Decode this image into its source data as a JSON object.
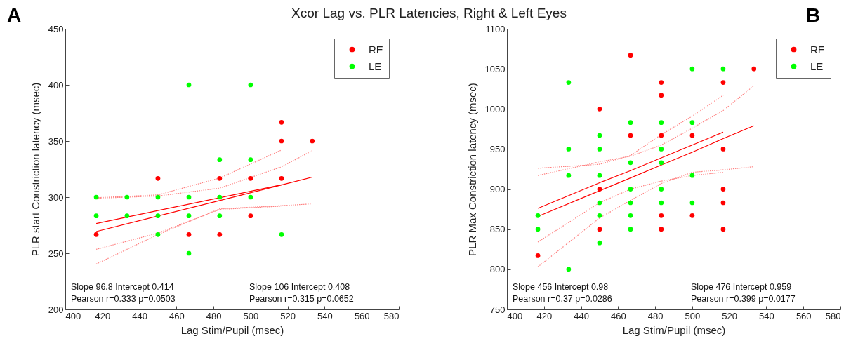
{
  "chart_data": [
    {
      "type": "scatter",
      "title": "Xcor Lag vs. PLR Latencies, Right & Left Eyes",
      "xlabel": "Lag Stim/Pupil (msec)",
      "ylabel": "PLR start Constriction latency (msec)",
      "xlim": [
        400,
        580
      ],
      "xticks": [
        400,
        420,
        440,
        460,
        480,
        500,
        520,
        540,
        560,
        580
      ],
      "ylim": [
        200,
        450
      ],
      "yticks": [
        200,
        250,
        300,
        350,
        400,
        450
      ],
      "legend": "top right",
      "marker": "circle",
      "annotations": [
        "A",
        "Slope 96.8 Intercept 0.414\nPearson r=0.333  p=0.0503",
        "Slope 106 Intercept 0.408\nPearson r=0.315  p=0.0652"
      ],
      "series": [
        {
          "type": "line",
          "marker": "none",
          "line_style": "solid",
          "color": "#ff0000",
          "x": [
            416.7,
            450,
            483.3,
            516.7
          ],
          "values": [
            276.5,
            288,
            299.5,
            311
          ]
        },
        {
          "type": "line",
          "marker": "none",
          "line_style": "dotted",
          "color": "#ff8080",
          "x": [
            416.7,
            450,
            483.3,
            516.7
          ],
          "values": [
            299.5,
            302,
            317,
            342
          ]
        },
        {
          "type": "line",
          "marker": "none",
          "line_style": "dotted",
          "color": "#ff8080",
          "x": [
            416.7,
            450,
            483.3,
            516.7
          ],
          "values": [
            253.5,
            268,
            289,
            292
          ]
        },
        {
          "type": "line",
          "marker": "none",
          "line_style": "solid",
          "color": "#ff0000",
          "x": [
            416.7,
            450,
            483.3,
            516.7,
            533.3
          ],
          "values": [
            269.4,
            283.2,
            297,
            310.9,
            317.8
          ]
        },
        {
          "type": "line",
          "marker": "none",
          "line_style": "dotted",
          "color": "#ff8080",
          "x": [
            416.7,
            450,
            483.3,
            516.7,
            533.3
          ],
          "values": [
            299,
            301,
            308,
            327,
            341.4
          ]
        },
        {
          "type": "line",
          "marker": "none",
          "line_style": "dotted",
          "color": "#ff8080",
          "x": [
            416.7,
            450,
            483.3,
            516.7,
            533.3
          ],
          "values": [
            240.4,
            266.7,
            289.6,
            292.4,
            294
          ]
        },
        {
          "name": "RE",
          "color": "#ff0000",
          "x": [
            416.7,
            450,
            466.7,
            483.3,
            483.3,
            500,
            500,
            516.7,
            516.7,
            516.7,
            533.3
          ],
          "values": [
            266.7,
            316.7,
            266.7,
            316.7,
            266.7,
            316.7,
            283.3,
            366.7,
            350,
            316.7,
            350
          ]
        },
        {
          "name": "LE",
          "color": "#00ff00",
          "x": [
            416.7,
            416.7,
            433.3,
            433.3,
            450,
            450,
            450,
            466.7,
            466.7,
            466.7,
            466.7,
            483.3,
            483.3,
            483.3,
            500,
            500,
            500,
            516.7
          ],
          "values": [
            300,
            283.3,
            300,
            283.3,
            300,
            283.3,
            266.7,
            400,
            300,
            283.3,
            250,
            333.3,
            300,
            283.3,
            400,
            333.3,
            300,
            266.7
          ]
        }
      ]
    },
    {
      "type": "scatter",
      "xlabel": "Lag Stim/Pupil (msec)",
      "ylabel": "PLR Max Constriction latency (msec)",
      "xlim": [
        400,
        580
      ],
      "xticks": [
        400,
        420,
        440,
        460,
        480,
        500,
        520,
        540,
        560,
        580
      ],
      "ylim": [
        750,
        1100
      ],
      "yticks": [
        750,
        800,
        850,
        900,
        950,
        1000,
        1050,
        1100
      ],
      "legend": "top right",
      "marker": "circle",
      "annotations": [
        "B",
        "Slope 456 Intercept 0.98\nPearson r=0.37  p=0.0286",
        "Slope 476 Intercept 0.959\nPearson r=0.399  p=0.0177"
      ],
      "series": [
        {
          "type": "line",
          "marker": "none",
          "line_style": "solid",
          "color": "#ff0000",
          "x": [
            416.7,
            450,
            466.7,
            483.3,
            500,
            516.7
          ],
          "values": [
            876,
            908,
            923,
            939,
            955,
            971
          ]
        },
        {
          "type": "line",
          "marker": "none",
          "line_style": "dotted",
          "color": "#ff8080",
          "x": [
            416.7,
            450,
            466.7,
            483.3,
            500,
            516.7
          ],
          "values": [
            926,
            931,
            942,
            968,
            991,
            1017
          ]
        },
        {
          "type": "line",
          "marker": "none",
          "line_style": "dotted",
          "color": "#ff8080",
          "x": [
            416.7,
            450,
            466.7,
            483.3,
            500,
            516.7
          ],
          "values": [
            834,
            883,
            900,
            910,
            917,
            921
          ]
        },
        {
          "type": "line",
          "marker": "none",
          "line_style": "solid",
          "color": "#ff0000",
          "x": [
            416.7,
            450,
            466.7,
            483.3,
            500,
            516.7,
            533.3
          ],
          "values": [
            866,
            898,
            914,
            930,
            946,
            963,
            979
          ]
        },
        {
          "type": "line",
          "marker": "none",
          "line_style": "dotted",
          "color": "#ff8080",
          "x": [
            416.7,
            450,
            466.7,
            483.3,
            500,
            516.7,
            533.3
          ],
          "values": [
            917,
            934,
            941,
            955,
            976,
            998,
            1029
          ]
        },
        {
          "type": "line",
          "marker": "none",
          "line_style": "dotted",
          "color": "#ff8080",
          "x": [
            416.7,
            450,
            466.7,
            483.3,
            500,
            516.7,
            533.3
          ],
          "values": [
            803,
            864,
            886,
            907,
            921,
            924,
            928
          ]
        },
        {
          "name": "RE",
          "color": "#ff0000",
          "x": [
            416.7,
            450,
            450,
            450,
            466.7,
            466.7,
            483.3,
            483.3,
            483.3,
            483.3,
            483.3,
            500,
            500,
            516.7,
            516.7,
            516.7,
            516.7,
            516.7,
            533.3
          ],
          "values": [
            817,
            1000,
            900,
            850,
            1067,
            967,
            1033,
            1017,
            967,
            867,
            850,
            967,
            867,
            1033,
            950,
            900,
            883,
            850,
            1050
          ]
        },
        {
          "name": "LE",
          "color": "#00ff00",
          "x": [
            416.7,
            416.7,
            433.3,
            433.3,
            433.3,
            433.3,
            450,
            450,
            450,
            450,
            450,
            450,
            466.7,
            466.7,
            466.7,
            466.7,
            466.7,
            466.7,
            483.3,
            483.3,
            483.3,
            483.3,
            483.3,
            500,
            500,
            500,
            500,
            516.7
          ],
          "values": [
            867,
            850,
            1033,
            950,
            917,
            800,
            967,
            950,
            917,
            883,
            867,
            833,
            983,
            933,
            900,
            883,
            867,
            850,
            983,
            950,
            933,
            900,
            883,
            1050,
            983,
            917,
            883,
            1050
          ]
        }
      ]
    }
  ]
}
